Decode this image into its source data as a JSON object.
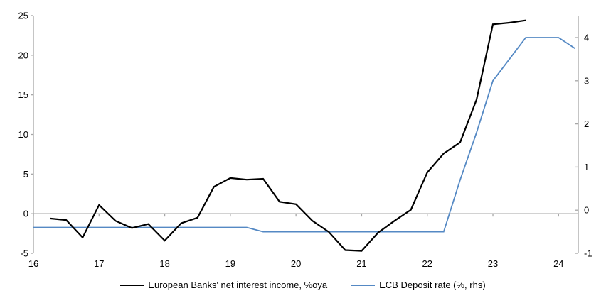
{
  "chart_data": {
    "type": "line",
    "title": "",
    "xlabel": "",
    "ylabel_left": "",
    "ylabel_right": "",
    "x_axis": {
      "ticks": [
        16,
        17,
        18,
        19,
        20,
        21,
        22,
        23,
        24
      ],
      "range": [
        16,
        24.3
      ]
    },
    "y_axis_left": {
      "ticks": [
        -5,
        0,
        5,
        10,
        15,
        20,
        25
      ],
      "range": [
        -5,
        25
      ]
    },
    "y_axis_right": {
      "ticks": [
        -1,
        0,
        1,
        2,
        3,
        4
      ],
      "range": [
        -1,
        4.51
      ]
    },
    "grid": "zero-line-only",
    "legend_position": "bottom",
    "series": [
      {
        "name": "European Banks' net interest income, %oya",
        "axis": "left",
        "color": "#000000",
        "stroke_width": 2.2,
        "x": [
          16.25,
          16.5,
          16.75,
          17.0,
          17.25,
          17.5,
          17.75,
          18.0,
          18.25,
          18.5,
          18.75,
          19.0,
          19.25,
          19.5,
          19.75,
          20.0,
          20.25,
          20.5,
          20.75,
          21.0,
          21.25,
          21.5,
          21.75,
          22.0,
          22.25,
          22.5,
          22.75,
          23.0,
          23.25,
          23.5
        ],
        "values": [
          -0.6,
          -0.8,
          -3.0,
          1.1,
          -0.9,
          -1.8,
          -1.3,
          -3.4,
          -1.2,
          -0.5,
          3.4,
          4.5,
          4.3,
          4.4,
          1.5,
          1.2,
          -0.9,
          -2.3,
          -4.6,
          -4.7,
          -2.4,
          -0.9,
          0.5,
          5.2,
          7.6,
          9.0,
          14.4,
          23.9,
          24.1,
          24.4
        ]
      },
      {
        "name": "ECB Deposit rate (%, rhs)",
        "axis": "right",
        "color": "#5589c4",
        "stroke_width": 1.8,
        "x": [
          16.0,
          16.25,
          16.5,
          16.75,
          17.0,
          17.25,
          17.5,
          17.75,
          18.0,
          18.25,
          18.5,
          18.75,
          19.0,
          19.25,
          19.5,
          19.75,
          20.0,
          20.25,
          20.5,
          20.75,
          21.0,
          21.25,
          21.5,
          21.75,
          22.0,
          22.25,
          22.5,
          22.75,
          23.0,
          23.25,
          23.5,
          23.75,
          24.0,
          24.25
        ],
        "values": [
          -0.4,
          -0.4,
          -0.4,
          -0.4,
          -0.4,
          -0.4,
          -0.4,
          -0.4,
          -0.4,
          -0.4,
          -0.4,
          -0.4,
          -0.4,
          -0.4,
          -0.5,
          -0.5,
          -0.5,
          -0.5,
          -0.5,
          -0.5,
          -0.5,
          -0.5,
          -0.5,
          -0.5,
          -0.5,
          -0.5,
          0.7,
          1.8,
          3.0,
          3.5,
          4.0,
          4.0,
          4.0,
          3.75
        ]
      }
    ]
  },
  "colors": {
    "axis_gray": "#a6a6a6",
    "text": "#000000"
  }
}
